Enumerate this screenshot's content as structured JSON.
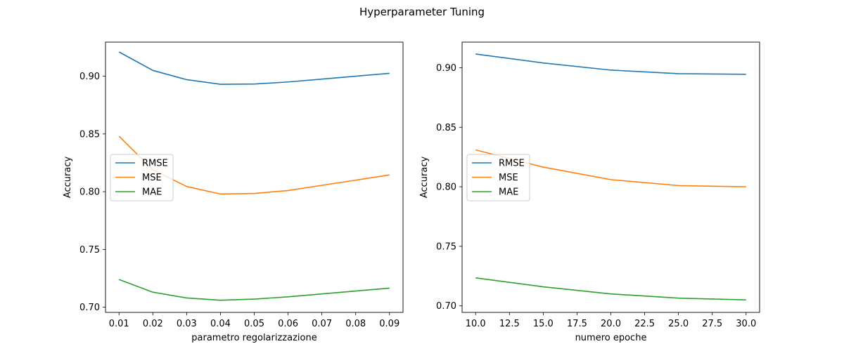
{
  "figure": {
    "title": "Hyperparameter Tuning"
  },
  "colors": {
    "RMSE": "#1f77b4",
    "MSE": "#ff7f0e",
    "MAE": "#2ca02c"
  },
  "chart_data": [
    {
      "type": "line",
      "title": "",
      "xlabel": "parametro regolarizzazione",
      "ylabel": "Accuracy",
      "x": [
        0.01,
        0.02,
        0.03,
        0.04,
        0.05,
        0.06,
        0.07,
        0.08,
        0.09
      ],
      "x_ticks": [
        "0.01",
        "0.02",
        "0.03",
        "0.04",
        "0.05",
        "0.06",
        "0.07",
        "0.08",
        "0.09"
      ],
      "y_ticks": [
        "0.70",
        "0.75",
        "0.80",
        "0.85",
        "0.90"
      ],
      "xlim": [
        0.006,
        0.094
      ],
      "ylim": [
        0.6955,
        0.9295
      ],
      "grid": false,
      "legend": "center-left",
      "series": [
        {
          "name": "RMSE",
          "values": [
            0.921,
            0.905,
            0.897,
            0.893,
            0.8932,
            0.895,
            0.8975,
            0.9,
            0.9025
          ]
        },
        {
          "name": "MSE",
          "values": [
            0.848,
            0.819,
            0.8045,
            0.798,
            0.7985,
            0.801,
            0.8055,
            0.81,
            0.8145
          ]
        },
        {
          "name": "MAE",
          "values": [
            0.724,
            0.713,
            0.708,
            0.706,
            0.707,
            0.709,
            0.7115,
            0.714,
            0.7165
          ]
        }
      ]
    },
    {
      "type": "line",
      "title": "",
      "xlabel": "numero epoche",
      "ylabel": "Accuracy",
      "x": [
        10,
        15,
        20,
        25,
        30
      ],
      "x_ticks": [
        "10.0",
        "12.5",
        "15.0",
        "17.5",
        "20.0",
        "22.5",
        "25.0",
        "27.5",
        "30.0"
      ],
      "y_ticks": [
        "0.70",
        "0.75",
        "0.80",
        "0.85",
        "0.90"
      ],
      "xlim": [
        9,
        31
      ],
      "ylim": [
        0.6945,
        0.9215
      ],
      "grid": false,
      "legend": "center-left",
      "series": [
        {
          "name": "RMSE",
          "values": [
            0.9115,
            0.904,
            0.898,
            0.895,
            0.8945
          ]
        },
        {
          "name": "MSE",
          "values": [
            0.831,
            0.8165,
            0.806,
            0.801,
            0.8
          ]
        },
        {
          "name": "MAE",
          "values": [
            0.7235,
            0.716,
            0.71,
            0.7065,
            0.705
          ]
        }
      ]
    }
  ]
}
